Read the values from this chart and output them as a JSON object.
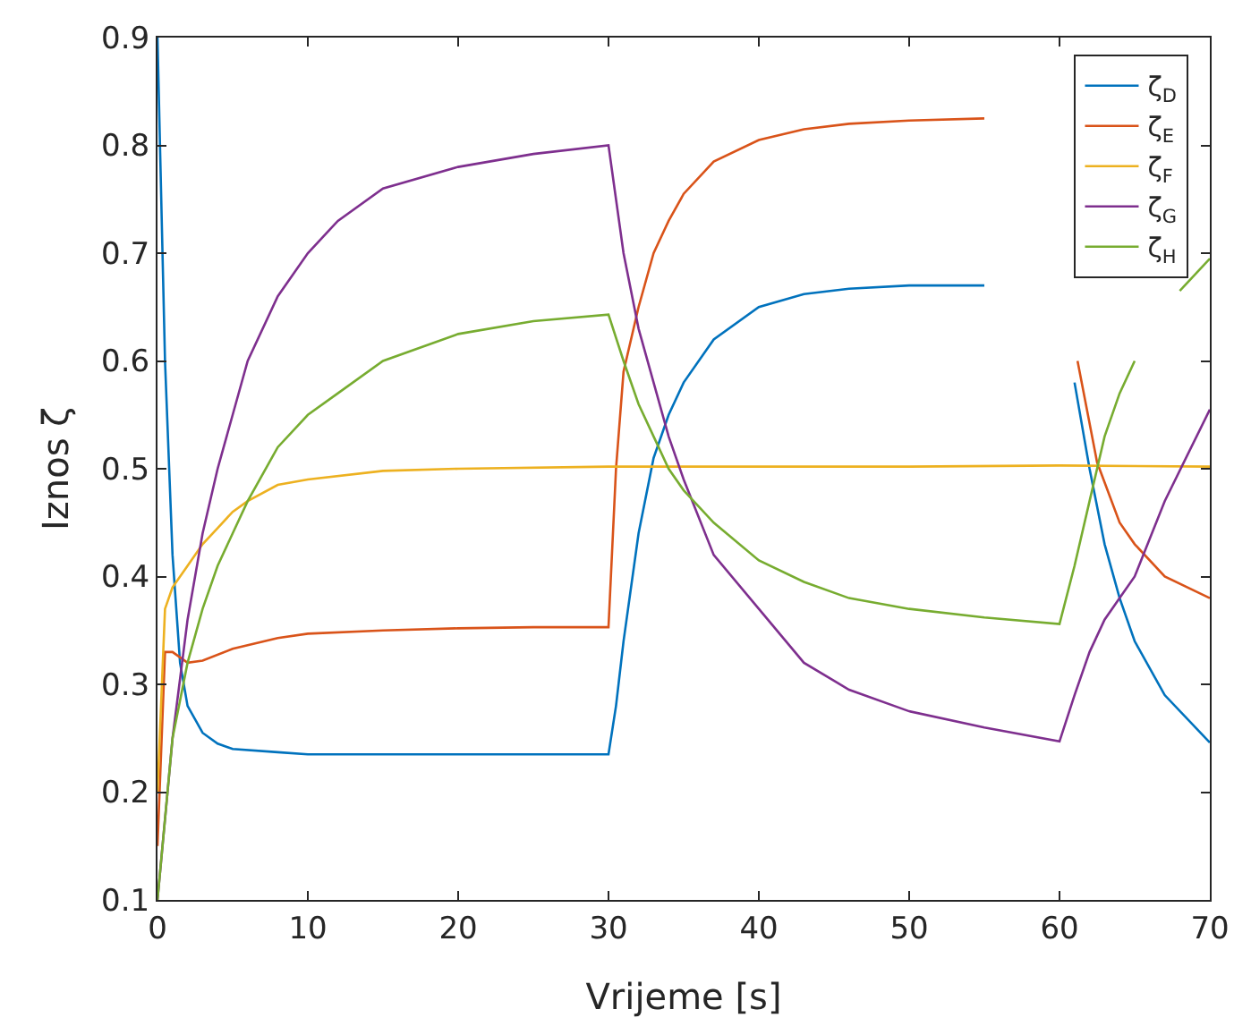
{
  "chart_data": {
    "type": "line",
    "xlabel": "Vrijeme [s]",
    "ylabel": "Iznos ζ",
    "xlim": [
      0,
      70
    ],
    "xticks": [
      0,
      10,
      20,
      30,
      40,
      50,
      60,
      70
    ],
    "ylim": [
      0.1,
      0.9
    ],
    "yticks": [
      0.1,
      0.2,
      0.3,
      0.4,
      0.5,
      0.6,
      0.7,
      0.8,
      0.9
    ],
    "grid": false,
    "legend": "top right",
    "marker": "none",
    "line_style": "solid",
    "series": [
      {
        "name": "ζ$_{D}$",
        "color": "#0072bd",
        "x": [
          0,
          0.5,
          1,
          1.5,
          2,
          3,
          4,
          5,
          8,
          10,
          15,
          20,
          25,
          30,
          30.5,
          31,
          32,
          33,
          34,
          35,
          37,
          40,
          43,
          46,
          50,
          55,
          60,
          61,
          62,
          63,
          64,
          65,
          67,
          70
        ],
        "values": [
          0.9,
          0.6,
          0.42,
          0.32,
          0.28,
          0.255,
          0.245,
          0.24,
          0.237,
          0.235,
          0.235,
          0.235,
          0.235,
          0.235,
          0.28,
          0.34,
          0.44,
          0.51,
          0.55,
          0.58,
          0.62,
          0.65,
          0.662,
          0.667,
          0.67,
          0.67,
          null,
          0.58,
          0.5,
          0.43,
          0.38,
          0.34,
          0.29,
          0.246
        ]
      },
      {
        "name": "ζ$_{E}$",
        "color": "#d95319",
        "x": [
          0,
          0.5,
          1,
          2,
          3,
          5,
          8,
          10,
          15,
          20,
          25,
          30,
          30.5,
          31,
          32,
          33,
          34,
          35,
          37,
          40,
          43,
          46,
          50,
          55,
          60,
          61.2,
          62.5,
          64,
          65,
          67,
          70
        ],
        "values": [
          0.15,
          0.33,
          0.33,
          0.32,
          0.322,
          0.333,
          0.343,
          0.347,
          0.35,
          0.352,
          0.353,
          0.353,
          0.5,
          0.59,
          0.65,
          0.7,
          0.73,
          0.755,
          0.785,
          0.805,
          0.815,
          0.82,
          0.823,
          0.825,
          null,
          0.6,
          0.506,
          0.45,
          0.43,
          0.4,
          0.38
        ]
      },
      {
        "name": "ζ$_{F}$",
        "color": "#edb120",
        "x": [
          0,
          0.5,
          1,
          2,
          3,
          4,
          5,
          6,
          8,
          10,
          15,
          20,
          30,
          40,
          50,
          60,
          70
        ],
        "values": [
          0.2,
          0.37,
          0.39,
          0.41,
          0.43,
          0.445,
          0.46,
          0.47,
          0.485,
          0.49,
          0.498,
          0.5,
          0.502,
          0.502,
          0.502,
          0.503,
          0.502
        ]
      },
      {
        "name": "ζ$_{G}$",
        "color": "#7e2f8e",
        "x": [
          0,
          1,
          2,
          3,
          4,
          5,
          6,
          8,
          10,
          12,
          15,
          20,
          25,
          30,
          31,
          32,
          33,
          34,
          35,
          37,
          40,
          43,
          46,
          50,
          55,
          60,
          61,
          62,
          63,
          64,
          65,
          67,
          70
        ],
        "values": [
          0.1,
          0.25,
          0.36,
          0.44,
          0.5,
          0.55,
          0.6,
          0.66,
          0.7,
          0.73,
          0.76,
          0.78,
          0.792,
          0.8,
          0.7,
          0.63,
          0.58,
          0.53,
          0.49,
          0.42,
          0.37,
          0.32,
          0.295,
          0.275,
          0.26,
          0.247,
          0.29,
          0.33,
          0.36,
          0.38,
          0.4,
          0.47,
          0.555
        ]
      },
      {
        "name": "ζ$_{H}$",
        "color": "#77ac30",
        "x": [
          0,
          1,
          2,
          3,
          4,
          5,
          6,
          8,
          10,
          12,
          15,
          20,
          25,
          30,
          31,
          32,
          33,
          34,
          35,
          37,
          40,
          43,
          46,
          50,
          55,
          60,
          61,
          62,
          63,
          64,
          65,
          67,
          68,
          70
        ],
        "values": [
          0.1,
          0.25,
          0.32,
          0.37,
          0.41,
          0.44,
          0.47,
          0.52,
          0.55,
          0.57,
          0.6,
          0.625,
          0.637,
          0.643,
          0.6,
          0.56,
          0.53,
          0.5,
          0.48,
          0.45,
          0.415,
          0.395,
          0.38,
          0.37,
          0.362,
          0.356,
          0.41,
          0.47,
          0.53,
          0.57,
          0.6,
          null,
          0.665,
          0.695
        ]
      }
    ]
  }
}
